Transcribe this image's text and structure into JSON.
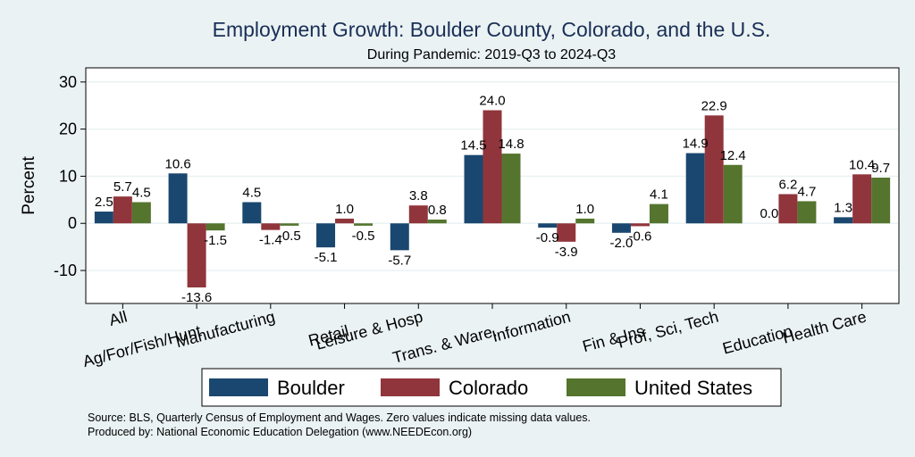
{
  "chart_data": {
    "type": "bar",
    "title": "Employment Growth: Boulder County, Colorado, and the U.S.",
    "subtitle": "During Pandemic: 2019-Q3 to 2024-Q3",
    "ylabel": "Percent",
    "ylim": [
      -17,
      33
    ],
    "yticks": [
      30,
      20,
      10,
      0,
      -10
    ],
    "ytick_labels": [
      "30",
      "20",
      "10",
      "0",
      "-10"
    ],
    "grid": true,
    "categories": [
      "All",
      "Ag/For/Fish/Hunt",
      "Manufacturing",
      "Retail",
      "Leisure & Hosp",
      "Trans. & Ware.",
      "Information",
      "Fin & Ins",
      "Prof, Sci, Tech",
      "Education",
      "Health Care"
    ],
    "series": [
      {
        "name": "Boulder",
        "color": "#1a476f",
        "values": [
          2.5,
          10.6,
          4.5,
          -5.1,
          -5.7,
          14.5,
          -0.9,
          -2.0,
          14.9,
          0.0,
          1.3
        ],
        "labels": [
          "2.5",
          "10.6",
          "4.5",
          "-5.1",
          "-5.7",
          "14.5",
          "-0.9",
          "-2.0",
          "14.9",
          "0.0",
          "1.3"
        ]
      },
      {
        "name": "Colorado",
        "color": "#90353b",
        "values": [
          5.7,
          -13.6,
          -1.4,
          1.0,
          3.8,
          24.0,
          -3.9,
          -0.6,
          22.9,
          6.2,
          10.4
        ],
        "labels": [
          "5.7",
          "-13.6",
          "-1.4",
          "1.0",
          "3.8",
          "24.0",
          "-3.9",
          "-0.6",
          "22.9",
          "6.2",
          "10.4"
        ]
      },
      {
        "name": "United States",
        "color": "#55752f",
        "values": [
          4.5,
          -1.5,
          -0.5,
          -0.5,
          0.8,
          14.8,
          1.0,
          4.1,
          12.4,
          4.7,
          9.7
        ],
        "labels": [
          "4.5",
          "-1.5",
          "-0.5",
          "-0.5",
          "0.8",
          "14.8",
          "1.0",
          "4.1",
          "12.4",
          "4.7",
          "9.7"
        ]
      }
    ],
    "legend_position": "bottom"
  },
  "notes": {
    "source": "Source: BLS, Quarterly Census of Employment and Wages. Zero values indicate missing data values.",
    "produced_by": "Produced by: National Economic Education Delegation (www.NEEDEcon.org)"
  }
}
